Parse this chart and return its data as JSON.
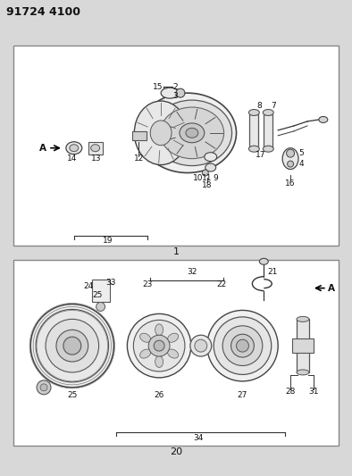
{
  "title": "91724 4100",
  "figsize": [
    3.94,
    5.33
  ],
  "dpi": 100
}
